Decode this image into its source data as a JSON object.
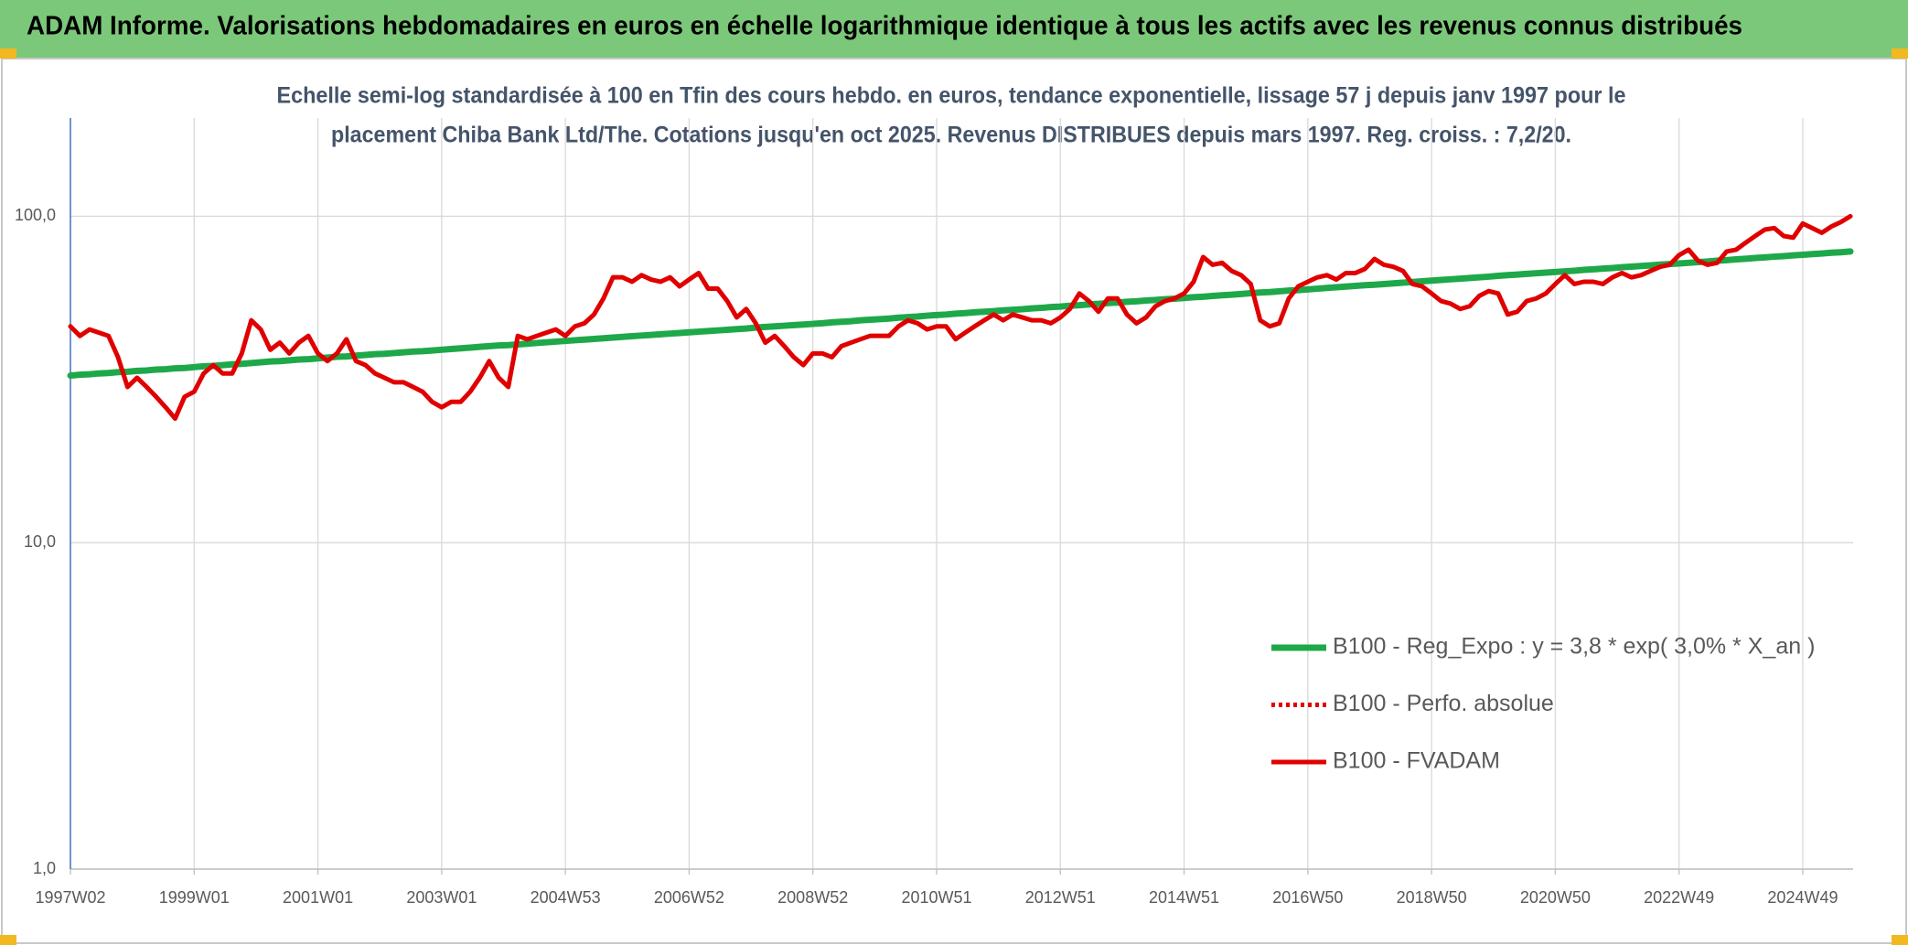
{
  "chart_data": {
    "type": "line",
    "title": "ADAM Informe. Valorisations hebdomadaires en euros en échelle logarithmique identique à tous les actifs avec les revenus connus distribués",
    "subtitle": [
      "Echelle semi-log standardisée à 100 en Tfin des cours hebdo. en euros, tendance exponentielle, lissage 57 j depuis janv 1997 pour le",
      "placement Chiba Bank Ltd/The. Cotations jusqu'en oct 2025. Revenus DISTRIBUES depuis mars 1997. Reg. croiss. : 7,2/20."
    ],
    "y_scale": "log",
    "ylim": [
      1,
      200
    ],
    "yticks": [
      {
        "value": 1,
        "label": "1,0"
      },
      {
        "value": 10,
        "label": "10,0"
      },
      {
        "value": 100,
        "label": "100,0"
      }
    ],
    "grid": true,
    "legend": "right",
    "categories": [
      "1997W02",
      null,
      null,
      null,
      null,
      null,
      null,
      null,
      null,
      null,
      null,
      null,
      null,
      "1999W01",
      null,
      null,
      null,
      null,
      null,
      null,
      null,
      null,
      null,
      null,
      null,
      null,
      "2001W01",
      null,
      null,
      null,
      null,
      null,
      null,
      null,
      null,
      null,
      null,
      null,
      null,
      "2003W01",
      null,
      null,
      null,
      null,
      null,
      null,
      null,
      null,
      null,
      null,
      null,
      null,
      "2004W53",
      null,
      null,
      null,
      null,
      null,
      null,
      null,
      null,
      null,
      null,
      null,
      null,
      "2006W52",
      null,
      null,
      null,
      null,
      null,
      null,
      null,
      null,
      null,
      null,
      null,
      null,
      "2008W52",
      null,
      null,
      null,
      null,
      null,
      null,
      null,
      null,
      null,
      null,
      null,
      null,
      "2010W51",
      null,
      null,
      null,
      null,
      null,
      null,
      null,
      null,
      null,
      null,
      null,
      null,
      "2012W51",
      null,
      null,
      null,
      null,
      null,
      null,
      null,
      null,
      null,
      null,
      null,
      null,
      "2014W51",
      null,
      null,
      null,
      null,
      null,
      null,
      null,
      null,
      null,
      null,
      null,
      null,
      "2016W50",
      null,
      null,
      null,
      null,
      null,
      null,
      null,
      null,
      null,
      null,
      null,
      null,
      "2018W50",
      null,
      null,
      null,
      null,
      null,
      null,
      null,
      null,
      null,
      null,
      null,
      null,
      "2020W50",
      null,
      null,
      null,
      null,
      null,
      null,
      null,
      null,
      null,
      null,
      null,
      null,
      "2022W49",
      null,
      null,
      null,
      null,
      null,
      null,
      null,
      null,
      null,
      null,
      null,
      null,
      "2024W49",
      null,
      null,
      null,
      null,
      null
    ],
    "series": [
      {
        "name": "B100 - Reg_Expo : y = 3,8 * exp( 3,0% *  X_an )",
        "color": "#1ea84a",
        "line_style": "solid",
        "values": [
          32.5,
          32.7,
          32.8,
          33.0,
          33.1,
          33.3,
          33.4,
          33.6,
          33.7,
          33.9,
          34.0,
          34.2,
          34.3,
          34.5,
          34.7,
          34.8,
          35.0,
          35.2,
          35.3,
          35.5,
          35.7,
          35.9,
          36.0,
          36.2,
          36.4,
          36.5,
          36.7,
          36.9,
          37.1,
          37.2,
          37.4,
          37.6,
          37.8,
          37.9,
          38.1,
          38.3,
          38.5,
          38.6,
          38.8,
          39.0,
          39.2,
          39.4,
          39.6,
          39.8,
          40.0,
          40.2,
          40.3,
          40.5,
          40.7,
          40.9,
          41.1,
          41.3,
          41.5,
          41.7,
          41.9,
          42.1,
          42.3,
          42.5,
          42.7,
          42.9,
          43.1,
          43.3,
          43.5,
          43.7,
          43.9,
          44.1,
          44.3,
          44.5,
          44.7,
          44.9,
          45.1,
          45.3,
          45.6,
          45.8,
          46.0,
          46.2,
          46.4,
          46.6,
          46.8,
          47.0,
          47.3,
          47.5,
          47.7,
          48.0,
          48.2,
          48.4,
          48.6,
          48.9,
          49.1,
          49.3,
          49.6,
          49.8,
          50.0,
          50.3,
          50.5,
          50.8,
          51.0,
          51.2,
          51.5,
          51.7,
          51.9,
          52.2,
          52.4,
          52.7,
          52.9,
          53.2,
          53.4,
          53.7,
          53.9,
          54.2,
          54.4,
          54.7,
          54.9,
          55.2,
          55.4,
          55.7,
          55.9,
          56.2,
          56.5,
          56.7,
          57.0,
          57.3,
          57.5,
          57.8,
          58.1,
          58.4,
          58.6,
          58.9,
          59.2,
          59.4,
          59.7,
          60.0,
          60.3,
          60.6,
          60.9,
          61.2,
          61.5,
          61.7,
          62.0,
          62.3,
          62.6,
          62.9,
          63.2,
          63.5,
          63.8,
          64.1,
          64.4,
          64.7,
          65.0,
          65.3,
          65.7,
          66.0,
          66.3,
          66.6,
          66.9,
          67.2,
          67.5,
          67.8,
          68.1,
          68.5,
          68.8,
          69.1,
          69.4,
          69.8,
          70.1,
          70.4,
          70.7,
          71.1,
          71.4,
          71.7,
          72.0,
          72.4,
          72.7,
          73.1,
          73.4,
          73.8,
          74.1,
          74.5,
          74.8,
          75.2,
          75.5,
          75.9,
          76.2,
          76.6,
          76.9,
          77.3,
          77.6,
          78.0
        ]
      },
      {
        "name": "B100 - Perfo. absolue",
        "color": "#e00000",
        "line_style": "dotted",
        "values": [
          null,
          null,
          null,
          null,
          null,
          null,
          null,
          null,
          null,
          null,
          null,
          null,
          null,
          null,
          null,
          null,
          null,
          null,
          null,
          null,
          null,
          null,
          null,
          null,
          null,
          null,
          null,
          null,
          null,
          null,
          null,
          null,
          null,
          null,
          null,
          null,
          null,
          null,
          null,
          null,
          null,
          null,
          null,
          null,
          null,
          null,
          null,
          null,
          null,
          null,
          null,
          null,
          null,
          null,
          null,
          null,
          null,
          null,
          null,
          null,
          null,
          null,
          null,
          null,
          null,
          null,
          null,
          null,
          null,
          null,
          null,
          null,
          null,
          null,
          null,
          null,
          null,
          null,
          null,
          null,
          null,
          null,
          null,
          null,
          null,
          null,
          null,
          null,
          null,
          null,
          null,
          null,
          null,
          null,
          null,
          null,
          null,
          null,
          null,
          null,
          null,
          null,
          null,
          null,
          null,
          null,
          null,
          null,
          null,
          null,
          null,
          null,
          null,
          null,
          null,
          null,
          null,
          null,
          null,
          null,
          null,
          null,
          null,
          null,
          null,
          null,
          null,
          null,
          null,
          null,
          null,
          null,
          null,
          null,
          null,
          null,
          null,
          null,
          null,
          null,
          null,
          null,
          null,
          null,
          null,
          null,
          null,
          null,
          null,
          null,
          null,
          null,
          null,
          null,
          null,
          null,
          null,
          null,
          null,
          null,
          null,
          null,
          null,
          null,
          null,
          null,
          null,
          null,
          null,
          null,
          null,
          null,
          null,
          null,
          null,
          null,
          null,
          null,
          null,
          null,
          null,
          null,
          null,
          null,
          null,
          null,
          null,
          null
        ]
      },
      {
        "name": "B100 - FVADAM",
        "color": "#e00000",
        "line_style": "solid",
        "values": [
          46,
          43,
          45,
          44,
          43,
          37,
          30,
          32,
          30,
          28,
          26,
          24,
          28,
          29,
          33,
          35,
          33,
          33,
          38,
          48,
          45,
          39,
          41,
          38,
          41,
          43,
          38,
          36,
          38,
          42,
          36,
          35,
          33,
          32,
          31,
          31,
          30,
          29,
          27,
          26,
          27,
          27,
          29,
          32,
          36,
          32,
          30,
          43,
          42,
          43,
          44,
          45,
          43,
          46,
          47,
          50,
          56,
          65,
          65,
          63,
          66,
          64,
          63,
          65,
          61,
          64,
          67,
          60,
          60,
          55,
          49,
          52,
          47,
          41,
          43,
          40,
          37,
          35,
          38,
          38,
          37,
          40,
          41,
          42,
          43,
          43,
          43,
          46,
          48,
          47,
          45,
          46,
          46,
          42,
          44,
          46,
          48,
          50,
          48,
          50,
          49,
          48,
          48,
          47,
          49,
          52,
          58,
          55,
          51,
          56,
          56,
          50,
          47,
          49,
          53,
          55,
          56,
          58,
          63,
          75,
          71,
          72,
          68,
          66,
          62,
          48,
          46,
          47,
          56,
          61,
          63,
          65,
          66,
          64,
          67,
          67,
          69,
          74,
          71,
          70,
          68,
          62,
          61,
          58,
          55,
          54,
          52,
          53,
          57,
          59,
          58,
          50,
          51,
          55,
          56,
          58,
          62,
          66,
          62,
          63,
          63,
          62,
          65,
          67,
          65,
          66,
          68,
          70,
          71,
          76,
          79,
          73,
          71,
          72,
          78,
          79,
          83,
          87,
          91,
          92,
          87,
          86,
          95,
          92,
          89,
          93,
          96,
          100
        ]
      }
    ]
  }
}
